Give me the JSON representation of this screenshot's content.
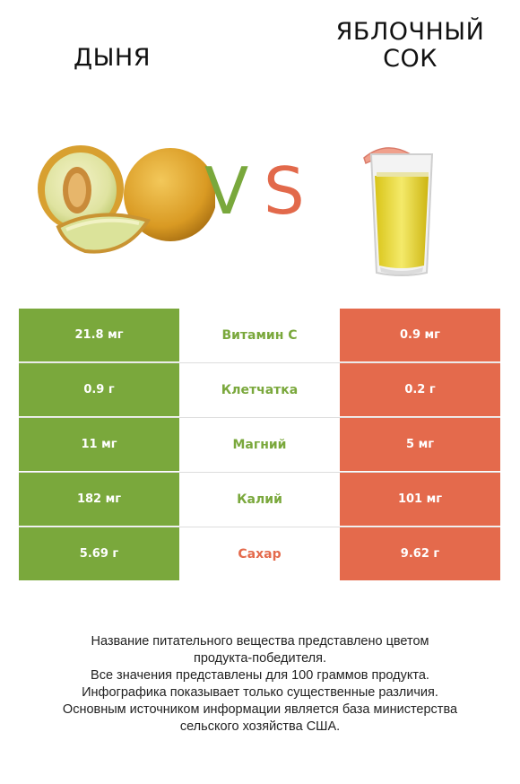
{
  "header": {
    "left_title": "ДЫНЯ",
    "right_title": "ЯБЛОЧНЫЙ СОК",
    "vs_v": "V",
    "vs_s": "S"
  },
  "colors": {
    "left_accent": "#7aa83c",
    "right_accent": "#e46a4c"
  },
  "rows": [
    {
      "left": "21.8 мг",
      "label": "Витамин C",
      "right": "0.9 мг",
      "winner": "left"
    },
    {
      "left": "0.9 г",
      "label": "Клетчатка",
      "right": "0.2 г",
      "winner": "left"
    },
    {
      "left": "11 мг",
      "label": "Магний",
      "right": "5 мг",
      "winner": "left"
    },
    {
      "left": "182 мг",
      "label": "Калий",
      "right": "101 мг",
      "winner": "left"
    },
    {
      "left": "5.69 г",
      "label": "Сахар",
      "right": "9.62 г",
      "winner": "right"
    }
  ],
  "footnote": [
    "Название питательного вещества представлено цветом",
    "продукта-победителя.",
    "Все значения представлены для 100 граммов продукта.",
    "Инфографика показывает только существенные различия.",
    "Основным источником информации является база министерства",
    "сельского хозяйства США."
  ]
}
